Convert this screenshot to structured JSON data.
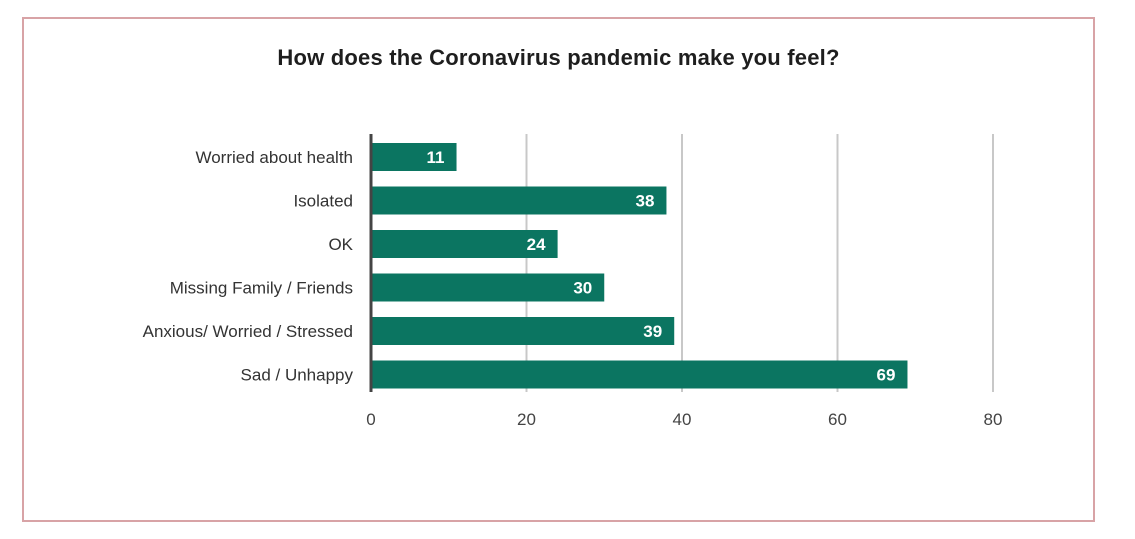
{
  "colors": {
    "bar": "#0b7561",
    "axis": "#444444",
    "grid": "#c8c8c8",
    "frame": "#d8a3a6"
  },
  "chart_data": {
    "type": "bar",
    "orientation": "horizontal",
    "title": "How does the Coronavirus pandemic make you feel?",
    "categories": [
      "Worried about health",
      "Isolated",
      "OK",
      "Missing Family / Friends",
      "Anxious/ Worried / Stressed",
      "Sad / Unhappy"
    ],
    "values": [
      11,
      38,
      24,
      30,
      39,
      69
    ],
    "data_labels": [
      "11",
      "38",
      "24",
      "30",
      "39",
      "69"
    ],
    "xlim": [
      0,
      80
    ],
    "ticks": [
      0,
      20,
      40,
      60,
      80
    ],
    "tick_labels": [
      "0",
      "20",
      "40",
      "60",
      "80"
    ],
    "grid": true,
    "legend": false
  }
}
